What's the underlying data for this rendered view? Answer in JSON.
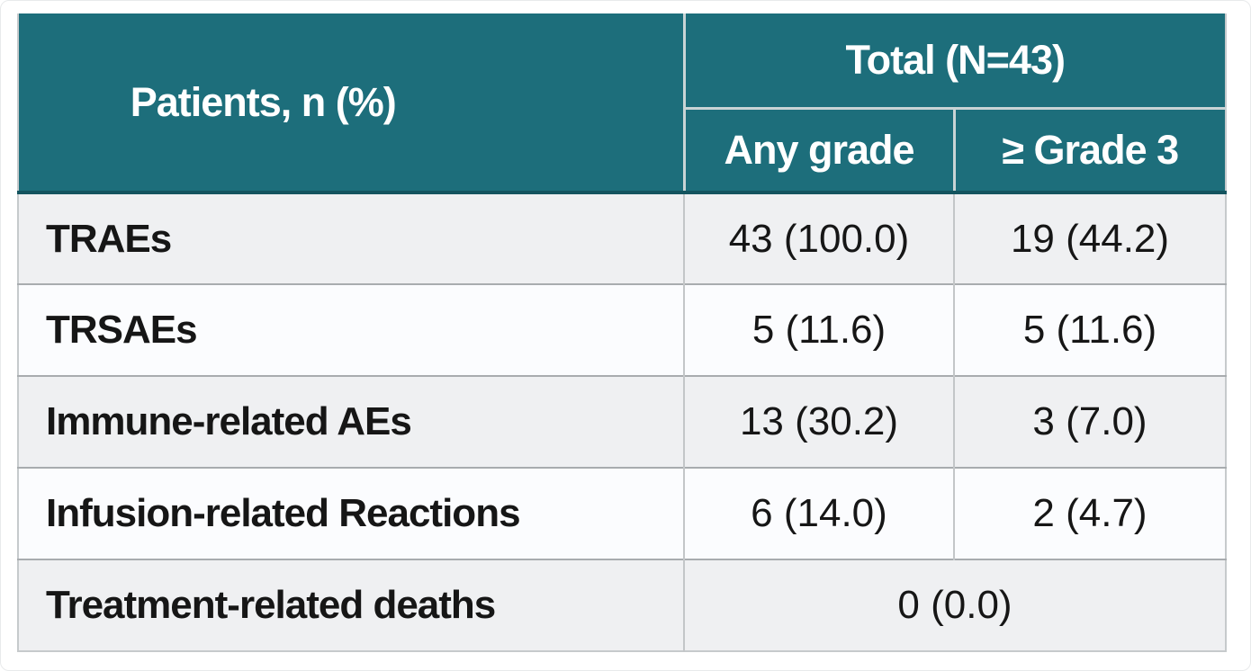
{
  "colors": {
    "header_bg": "#1d6e7b",
    "header_edge": "#14545f",
    "header_divider": "#c9d4d5",
    "row_alt_bg": "#eff0f2",
    "row_bg": "#fbfcfe",
    "row_divider": "#a8acaf",
    "col_divider": "#c3c6c8",
    "header_text": "#ffffff",
    "body_text": "#161616"
  },
  "chart_data": {
    "type": "table",
    "header": {
      "row_label_column": "Patients, n (%)",
      "group": "Total (N=43)",
      "subcolumns": [
        "Any grade",
        "≥ Grade 3"
      ]
    },
    "rows": [
      {
        "label": "TRAEs",
        "values": [
          "43 (100.0)",
          "19 (44.2)"
        ]
      },
      {
        "label": "TRSAEs",
        "values": [
          "5 (11.6)",
          "5 (11.6)"
        ]
      },
      {
        "label": "Immune-related AEs",
        "values": [
          "13 (30.2)",
          "3 (7.0)"
        ]
      },
      {
        "label": "Infusion-related Reactions",
        "values": [
          "6 (14.0)",
          "2 (4.7)"
        ]
      },
      {
        "label": "Treatment-related deaths",
        "values": [
          "0 (0.0)"
        ],
        "merged": true
      }
    ],
    "layout_hints": {
      "group_header_spans_subcolumns": true,
      "last_row_value_spans_both_columns": true,
      "alternating_row_shading": true
    }
  }
}
